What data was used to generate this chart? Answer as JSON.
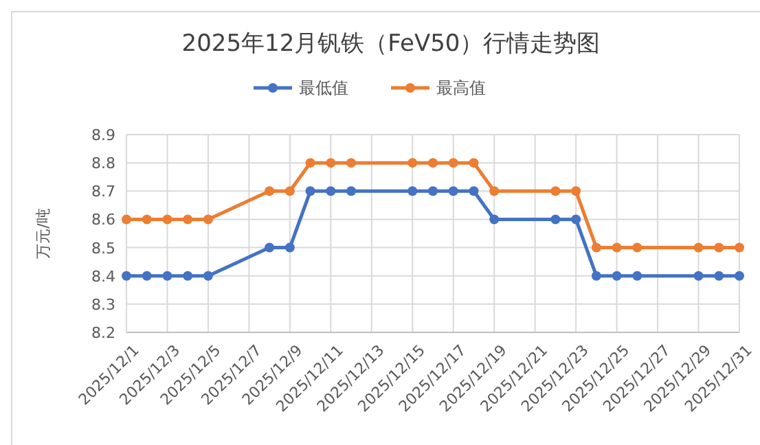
{
  "chart_data": {
    "type": "line",
    "title": "2025年12月钒铁（FeV50）行情走势图",
    "ylabel": "万元/吨",
    "x": [
      "2025-12-01",
      "2025-12-02",
      "2025-12-03",
      "2025-12-04",
      "2025-12-05",
      "2025-12-08",
      "2025-12-09",
      "2025-12-10",
      "2025-12-11",
      "2025-12-12",
      "2025-12-15",
      "2025-12-16",
      "2025-12-17",
      "2025-12-18",
      "2025-12-19",
      "2025-12-22",
      "2025-12-23",
      "2025-12-24",
      "2025-12-25",
      "2025-12-26",
      "2025-12-29",
      "2025-12-30",
      "2025-12-31"
    ],
    "series": [
      {
        "name": "最低值",
        "color": "#4472c4",
        "values": [
          8.4,
          8.4,
          8.4,
          8.4,
          8.4,
          8.5,
          8.5,
          8.7,
          8.7,
          8.7,
          8.7,
          8.7,
          8.7,
          8.7,
          8.6,
          8.6,
          8.6,
          8.4,
          8.4,
          8.4,
          8.4,
          8.4,
          8.4
        ]
      },
      {
        "name": "最高值",
        "color": "#ed7d31",
        "values": [
          8.6,
          8.6,
          8.6,
          8.6,
          8.6,
          8.7,
          8.7,
          8.8,
          8.8,
          8.8,
          8.8,
          8.8,
          8.8,
          8.8,
          8.7,
          8.7,
          8.7,
          8.5,
          8.5,
          8.5,
          8.5,
          8.5,
          8.5
        ]
      }
    ],
    "xlim": [
      "2025-12-01",
      "2025-12-31"
    ],
    "xticks": [
      {
        "value": "2025-12-01",
        "label": "2025/12/1"
      },
      {
        "value": "2025-12-03",
        "label": "2025/12/3"
      },
      {
        "value": "2025-12-05",
        "label": "2025/12/5"
      },
      {
        "value": "2025-12-07",
        "label": "2025/12/7"
      },
      {
        "value": "2025-12-09",
        "label": "2025/12/9"
      },
      {
        "value": "2025-12-11",
        "label": "2025/12/11"
      },
      {
        "value": "2025-12-13",
        "label": "2025/12/13"
      },
      {
        "value": "2025-12-15",
        "label": "2025/12/15"
      },
      {
        "value": "2025-12-17",
        "label": "2025/12/17"
      },
      {
        "value": "2025-12-19",
        "label": "2025/12/19"
      },
      {
        "value": "2025-12-21",
        "label": "2025/12/21"
      },
      {
        "value": "2025-12-23",
        "label": "2025/12/23"
      },
      {
        "value": "2025-12-25",
        "label": "2025/12/25"
      },
      {
        "value": "2025-12-27",
        "label": "2025/12/27"
      },
      {
        "value": "2025-12-29",
        "label": "2025/12/29"
      },
      {
        "value": "2025-12-31",
        "label": "2025/12/31"
      }
    ],
    "ylim": [
      8.2,
      8.9
    ],
    "yticks": [
      8.2,
      8.3,
      8.4,
      8.5,
      8.6,
      8.7,
      8.8,
      8.9
    ],
    "grid": true,
    "legend": "top",
    "marker": "circle",
    "line_style": "solid"
  }
}
